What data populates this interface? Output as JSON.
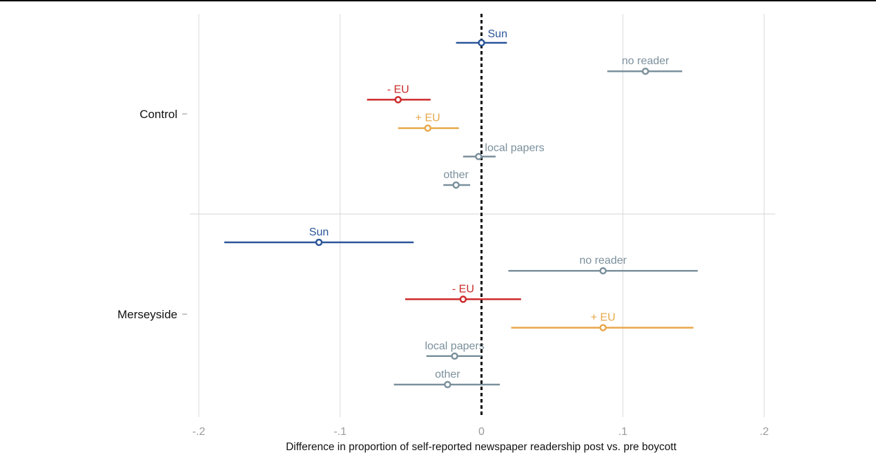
{
  "chart_data": {
    "type": "scatter",
    "subtype": "dot-and-whisker",
    "xlabel": "Difference in proportion of self-reported newspaper readership post vs. pre boycott",
    "xlim": [
      -0.2,
      0.2
    ],
    "x_ticks": [
      -0.2,
      -0.1,
      0,
      0.1,
      0.2
    ],
    "x_tick_labels": [
      "-.2",
      "-.1",
      "0",
      ".1",
      ".2"
    ],
    "reference_line": {
      "x": 0,
      "style": "dotted",
      "color": "#000000"
    },
    "grid": "vertical",
    "legend": "none",
    "colors": {
      "Sun": "#2a5599",
      "- EU": "#cc2a2a",
      "+ EU": "#e8a84a",
      "no reader": "#7b909c",
      "local papers": "#7b909c",
      "other": "#7b909c"
    },
    "groups": [
      {
        "name": "Control",
        "points": [
          {
            "label": "Sun",
            "estimate": 0.0,
            "ci_low": -0.018,
            "ci_high": 0.018
          },
          {
            "label": "no reader",
            "estimate": 0.116,
            "ci_low": 0.089,
            "ci_high": 0.142
          },
          {
            "label": "- EU",
            "estimate": -0.059,
            "ci_low": -0.081,
            "ci_high": -0.036
          },
          {
            "label": "+ EU",
            "estimate": -0.038,
            "ci_low": -0.059,
            "ci_high": -0.016
          },
          {
            "label": "local papers",
            "estimate": -0.002,
            "ci_low": -0.013,
            "ci_high": 0.01
          },
          {
            "label": "other",
            "estimate": -0.018,
            "ci_low": -0.027,
            "ci_high": -0.008
          }
        ]
      },
      {
        "name": "Merseyside",
        "points": [
          {
            "label": "Sun",
            "estimate": -0.115,
            "ci_low": -0.182,
            "ci_high": -0.048
          },
          {
            "label": "no reader",
            "estimate": 0.086,
            "ci_low": 0.019,
            "ci_high": 0.153
          },
          {
            "label": "- EU",
            "estimate": -0.013,
            "ci_low": -0.054,
            "ci_high": 0.028
          },
          {
            "label": "+ EU",
            "estimate": 0.086,
            "ci_low": 0.021,
            "ci_high": 0.15
          },
          {
            "label": "local papers",
            "estimate": -0.019,
            "ci_low": -0.039,
            "ci_high": 0.0
          },
          {
            "label": "other",
            "estimate": -0.024,
            "ci_low": -0.062,
            "ci_high": 0.013
          }
        ]
      }
    ]
  }
}
